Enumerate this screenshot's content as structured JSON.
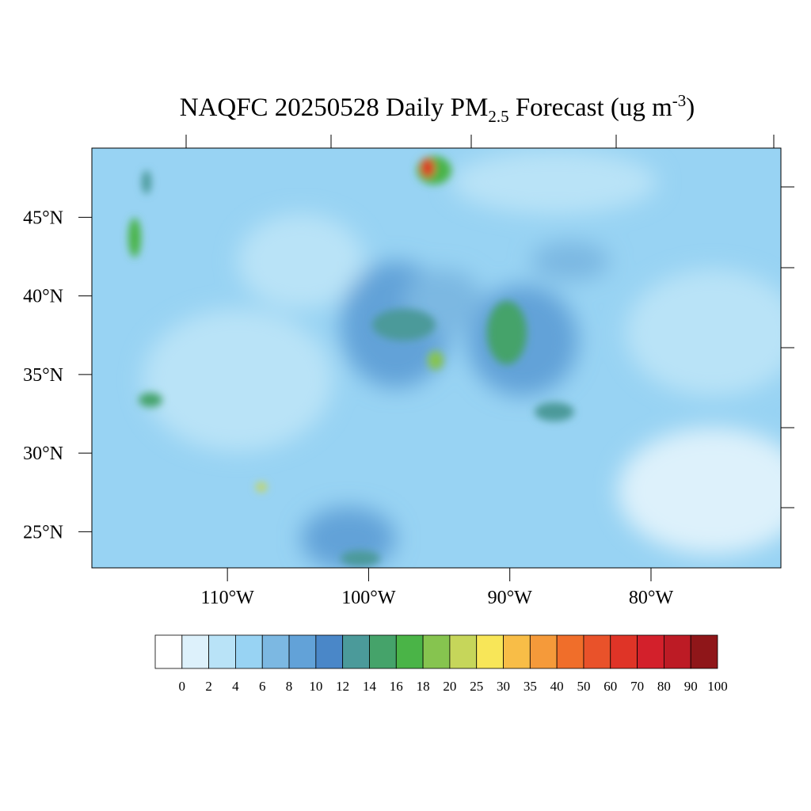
{
  "map": {
    "title": {
      "main": "NAQFC 20250528 Daily PM",
      "subscript": "2.5",
      "middle": " Forecast (ug m",
      "superscript": "-3",
      "end": ")"
    },
    "xlim": [
      -119.6,
      -70.8
    ],
    "ylim": [
      22.7,
      49.4
    ],
    "xticks": [
      {
        "value": -110,
        "label": "110°W"
      },
      {
        "value": -100,
        "label": "100°W"
      },
      {
        "value": -90,
        "label": "90°W"
      },
      {
        "value": -80,
        "label": "80°W"
      }
    ],
    "yticks": [
      {
        "value": 45,
        "label": "45°N"
      },
      {
        "value": 40,
        "label": "40°N"
      },
      {
        "value": 35,
        "label": "35°N"
      },
      {
        "value": 30,
        "label": "30°N"
      },
      {
        "value": 25,
        "label": "25°N"
      }
    ],
    "colorbar": {
      "levels": [
        0,
        2,
        4,
        6,
        8,
        10,
        12,
        14,
        16,
        18,
        20,
        25,
        30,
        35,
        40,
        50,
        60,
        70,
        80,
        90,
        100
      ],
      "colors": [
        "#ffffff",
        "#ddf1fb",
        "#b9e3f7",
        "#98d3f3",
        "#7cb8e2",
        "#62a2d8",
        "#4a87c8",
        "#4b9a9a",
        "#45a36a",
        "#4ab447",
        "#86c44f",
        "#c6d65a",
        "#f8e658",
        "#f8bd47",
        "#f59a3a",
        "#f06e2a",
        "#e9522a",
        "#df3427",
        "#d3202b",
        "#bd1b25",
        "#8f1619"
      ]
    }
  }
}
